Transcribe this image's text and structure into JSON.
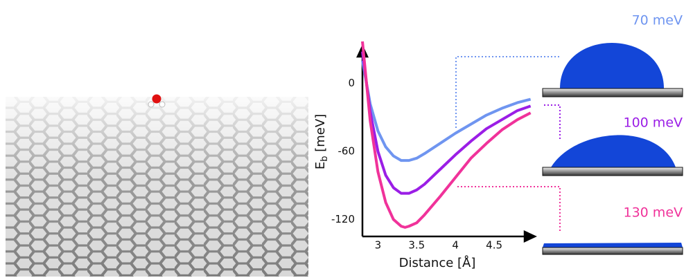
{
  "chart_data": {
    "type": "line",
    "x_label": "Distance [Å]",
    "y_label": {
      "symbol": "E",
      "subscript": "b",
      "unit": " [meV]"
    },
    "x": [
      2.8,
      2.9,
      3.0,
      3.1,
      3.2,
      3.3,
      3.35,
      3.4,
      3.5,
      3.6,
      3.8,
      4.0,
      4.2,
      4.4,
      4.6,
      4.8,
      4.97
    ],
    "series": [
      {
        "name": "70 meV",
        "color": "#6f95f0",
        "values": [
          20,
          -18,
          -42,
          -56,
          -64,
          -68,
          -68,
          -68,
          -66,
          -62,
          -53,
          -44,
          -36,
          -28,
          -22,
          -17,
          -14
        ]
      },
      {
        "name": "100 meV",
        "color": "#9b1ee6",
        "values": [
          28,
          -25,
          -60,
          -81,
          -92,
          -97,
          -97,
          -97,
          -94,
          -89,
          -76,
          -63,
          -51,
          -40,
          -32,
          -24,
          -20
        ]
      },
      {
        "name": "130 meV",
        "color": "#f0329a",
        "values": [
          37,
          -33,
          -78,
          -105,
          -120,
          -126,
          -127,
          -126,
          -123,
          -116,
          -100,
          -83,
          -66,
          -53,
          -41,
          -32,
          -26
        ]
      }
    ],
    "xlim": [
      2.8,
      5.0
    ],
    "ylim": [
      -135,
      40
    ],
    "xticks": [
      3,
      3.5,
      4,
      4.5
    ],
    "yticks": [
      0,
      -60,
      -120
    ],
    "grid": false
  }
}
